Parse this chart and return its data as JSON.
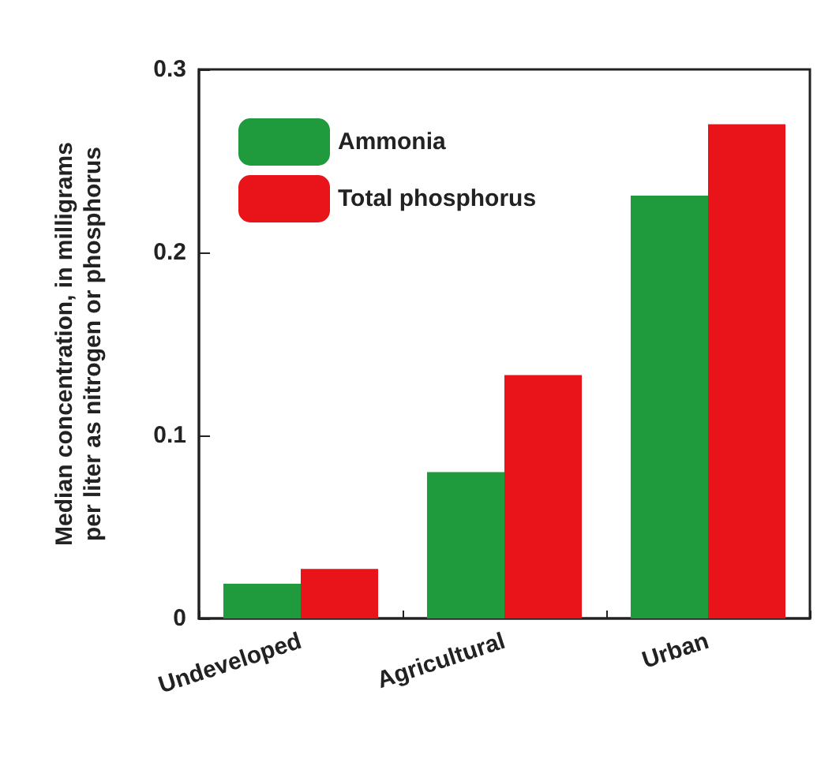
{
  "chart_data": {
    "type": "bar",
    "ylabel": "Median concentration, in milligrams\nper liter as nitrogen or phosphorus",
    "categories": [
      "Undeveloped",
      "Agricultural",
      "Urban"
    ],
    "series": [
      {
        "name": "Ammonia",
        "color": "#1f9a3c",
        "values": [
          0.019,
          0.08,
          0.231
        ]
      },
      {
        "name": "Total phosphorus",
        "color": "#e8141a",
        "values": [
          0.027,
          0.133,
          0.27
        ]
      }
    ],
    "ylim": [
      0,
      0.3
    ],
    "yticks": [
      0,
      0.1,
      0.2,
      0.3
    ],
    "grid": false,
    "legend": "top left"
  }
}
